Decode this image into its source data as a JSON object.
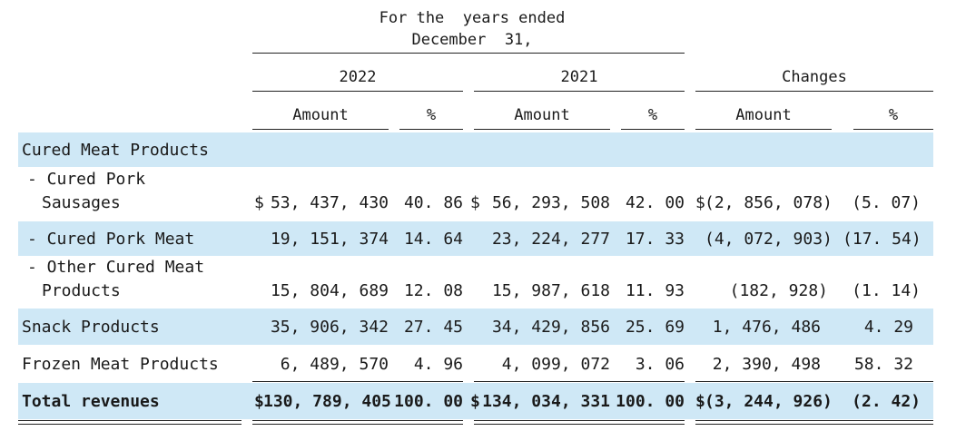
{
  "header": {
    "period_line1": "For the  years ended",
    "period_line2": "December  31,",
    "col_2022": "2022",
    "col_2021": "2021",
    "col_changes": "Changes",
    "amount_label": "Amount",
    "pct_label": "%"
  },
  "colors": {
    "band": "#cfe8f6",
    "rule": "#222222",
    "text": "#1a1a1a"
  },
  "rows": [
    {
      "label": "Cured Meat Products"
    },
    {
      "label_line1": "- Cured Pork",
      "label_line2": "Sausages",
      "cur_a": "$",
      "a22": "53, 437, 430",
      "p22": "40. 86",
      "cur_b": "$",
      "a21": "56, 293, 508",
      "p21": "42. 00",
      "cur_c": "$",
      "ach": "(2, 856, 078)",
      "pch": "(5. 07)"
    },
    {
      "label": "- Cured Pork Meat",
      "a22": "19, 151, 374",
      "p22": "14. 64",
      "a21": "23, 224, 277",
      "p21": "17. 33",
      "ach": "(4, 072, 903)",
      "pch": "(17. 54)"
    },
    {
      "label_line1": "- Other Cured Meat",
      "label_line2": "Products",
      "a22": "15, 804, 689",
      "p22": "12. 08",
      "a21": "15, 987, 618",
      "p21": "11. 93",
      "ach": "(182, 928)",
      "pch": "(1. 14)"
    },
    {
      "label": "Snack Products",
      "a22": "35, 906, 342",
      "p22": "27. 45",
      "a21": "34, 429, 856",
      "p21": "25. 69",
      "ach": "1, 476, 486",
      "pch": "4. 29"
    },
    {
      "label": "Frozen Meat Products",
      "a22": "6, 489, 570",
      "p22": "4. 96",
      "a21": "4, 099, 072",
      "p21": "3. 06",
      "ach": "2, 390, 498",
      "pch": "58. 32"
    },
    {
      "label": "Total revenues",
      "cur_a": "$",
      "a22": "130, 789, 405",
      "p22": "100. 00",
      "cur_b": "$",
      "a21": "134, 034, 331",
      "p21": "100. 00",
      "cur_c": "$",
      "ach": "(3, 244, 926)",
      "pch": "(2. 42)"
    }
  ]
}
